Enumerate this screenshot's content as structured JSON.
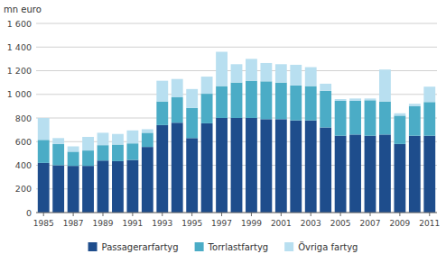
{
  "chart_data": {
    "type": "bar",
    "stacked": true,
    "grid": true,
    "legend": "bottom",
    "y_label": "mn euro",
    "categories": [
      "1985",
      null,
      "1987",
      null,
      "1989",
      null,
      "1991",
      null,
      "1993",
      null,
      "1995",
      null,
      "1997",
      null,
      "1999",
      null,
      "2001",
      null,
      "2003",
      null,
      "2005",
      null,
      "2007",
      null,
      "2009",
      null,
      "2011"
    ],
    "series": [
      {
        "name": "Passagerarfartyg",
        "color": "#1e4d8c",
        "values": [
          420,
          400,
          395,
          395,
          440,
          435,
          445,
          555,
          740,
          760,
          630,
          755,
          800,
          800,
          800,
          790,
          790,
          780,
          780,
          720,
          650,
          660,
          650,
          660,
          580,
          650,
          650
        ]
      },
      {
        "name": "Torrlastfartyg",
        "color": "#4bacc6",
        "values": [
          195,
          180,
          120,
          130,
          130,
          140,
          140,
          120,
          200,
          215,
          255,
          250,
          270,
          300,
          315,
          320,
          310,
          295,
          290,
          310,
          295,
          285,
          300,
          280,
          240,
          250,
          285
        ]
      },
      {
        "name": "Övriga fartyg",
        "color": "#b8dff0",
        "values": [
          185,
          50,
          45,
          115,
          105,
          90,
          110,
          30,
          175,
          155,
          160,
          145,
          290,
          155,
          185,
          155,
          155,
          175,
          160,
          60,
          15,
          20,
          15,
          270,
          20,
          20,
          130
        ]
      }
    ],
    "ylim": [
      0,
      1600
    ],
    "yticks": [
      0,
      200,
      400,
      600,
      800,
      {
        "value": 1000,
        "label": "1 000"
      },
      {
        "value": 1200,
        "label": "1 200"
      },
      {
        "value": 1400,
        "label": "1 400"
      },
      {
        "value": 1600,
        "label": "1 600"
      }
    ]
  }
}
